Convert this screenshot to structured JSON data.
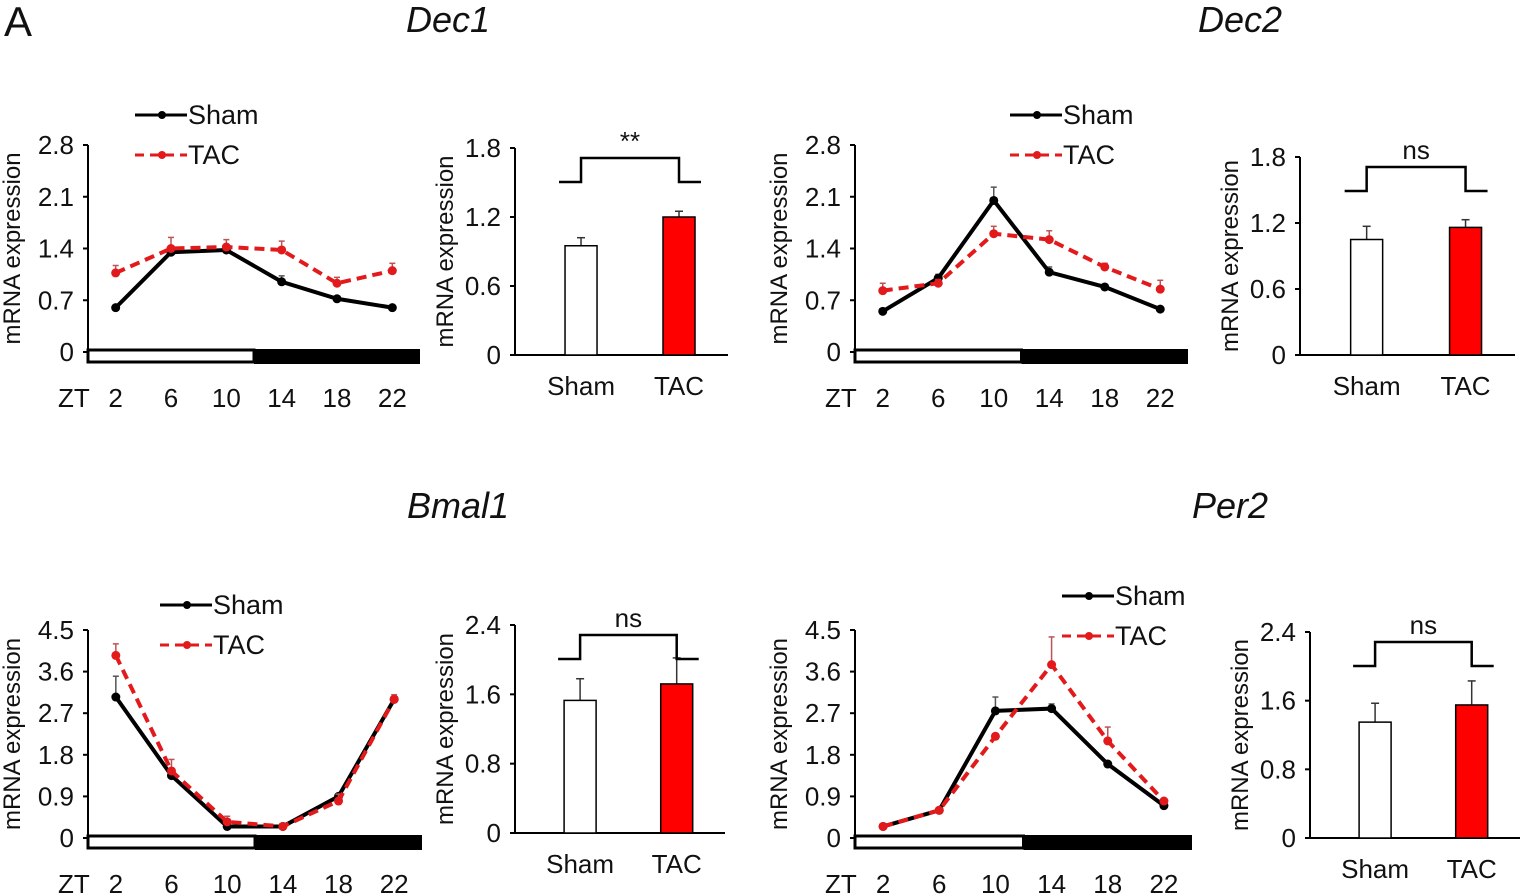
{
  "panel_label": "A",
  "colors": {
    "sham": "#000000",
    "tac": "#e31a1c",
    "tac_bar": "#ff0000"
  },
  "chart_data": [
    {
      "type": "line",
      "title": "Dec1",
      "ylabel": "mRNA expression",
      "xlabel_prefix": "ZT",
      "x": [
        2,
        6,
        10,
        14,
        18,
        22
      ],
      "xlim": [
        0,
        24
      ],
      "ylim": [
        0,
        2.8
      ],
      "yticks": [
        0,
        0.7,
        1.4,
        2.1,
        2.8
      ],
      "light_dark": {
        "light": [
          0,
          12
        ],
        "dark": [
          12,
          24
        ]
      },
      "legend": "top-left",
      "series": [
        {
          "name": "Sham",
          "values": [
            0.6,
            1.35,
            1.38,
            0.95,
            0.72,
            0.6
          ],
          "err": [
            0,
            0,
            0,
            0.08,
            0,
            0
          ]
        },
        {
          "name": "TAC",
          "values": [
            1.07,
            1.4,
            1.42,
            1.38,
            0.93,
            1.1
          ],
          "err": [
            0.1,
            0.15,
            0.1,
            0.12,
            0.08,
            0.1
          ]
        }
      ]
    },
    {
      "type": "bar",
      "title": "",
      "ylabel": "mRNA expression",
      "categories": [
        "Sham",
        "TAC"
      ],
      "values": [
        0.95,
        1.2
      ],
      "err": [
        0.07,
        0.05
      ],
      "ylim": [
        0,
        1.8
      ],
      "yticks": [
        0,
        0.6,
        1.2,
        1.8
      ],
      "significance": "**"
    },
    {
      "type": "line",
      "title": "Dec2",
      "ylabel": "mRNA expression",
      "xlabel_prefix": "ZT",
      "x": [
        2,
        6,
        10,
        14,
        18,
        22
      ],
      "xlim": [
        0,
        24
      ],
      "ylim": [
        0,
        2.8
      ],
      "yticks": [
        0,
        0.7,
        1.4,
        2.1,
        2.8
      ],
      "light_dark": {
        "light": [
          0,
          12
        ],
        "dark": [
          12,
          24
        ]
      },
      "legend": "top-right",
      "series": [
        {
          "name": "Sham",
          "values": [
            0.55,
            1.0,
            2.05,
            1.08,
            0.88,
            0.58
          ],
          "err": [
            0,
            0.05,
            0.18,
            0.07,
            0,
            0
          ]
        },
        {
          "name": "TAC",
          "values": [
            0.83,
            0.93,
            1.6,
            1.52,
            1.15,
            0.85
          ],
          "err": [
            0.1,
            0.05,
            0.1,
            0.12,
            0.05,
            0.12
          ]
        }
      ]
    },
    {
      "type": "bar",
      "title": "",
      "ylabel": "mRNA expression",
      "categories": [
        "Sham",
        "TAC"
      ],
      "values": [
        1.05,
        1.16
      ],
      "err": [
        0.12,
        0.07
      ],
      "ylim": [
        0,
        1.8
      ],
      "yticks": [
        0,
        0.6,
        1.2,
        1.8
      ],
      "significance": "ns"
    },
    {
      "type": "line",
      "title": "Bmal1",
      "ylabel": "mRNA expression",
      "xlabel_prefix": "ZT",
      "x": [
        2,
        6,
        10,
        14,
        18,
        22
      ],
      "xlim": [
        0,
        24
      ],
      "ylim": [
        0,
        4.5
      ],
      "yticks": [
        0,
        0.9,
        1.8,
        2.7,
        3.6,
        4.5
      ],
      "light_dark": {
        "light": [
          0,
          12
        ],
        "dark": [
          12,
          24
        ]
      },
      "legend": "top-center",
      "series": [
        {
          "name": "Sham",
          "values": [
            3.05,
            1.35,
            0.25,
            0.25,
            0.9,
            3.0
          ],
          "err": [
            0.45,
            0,
            0,
            0,
            0,
            0
          ]
        },
        {
          "name": "TAC",
          "values": [
            3.95,
            1.45,
            0.35,
            0.25,
            0.8,
            3.0
          ],
          "err": [
            0.25,
            0.25,
            0.12,
            0,
            0.15,
            0.1
          ]
        }
      ]
    },
    {
      "type": "bar",
      "title": "",
      "ylabel": "mRNA expression",
      "categories": [
        "Sham",
        "TAC"
      ],
      "values": [
        1.53,
        1.72
      ],
      "err": [
        0.25,
        0.3
      ],
      "ylim": [
        0,
        2.4
      ],
      "yticks": [
        0,
        0.8,
        1.6,
        2.4
      ],
      "significance": "ns"
    },
    {
      "type": "line",
      "title": "Per2",
      "ylabel": "mRNA expression",
      "xlabel_prefix": "ZT",
      "x": [
        2,
        6,
        10,
        14,
        18,
        22
      ],
      "xlim": [
        0,
        24
      ],
      "ylim": [
        0,
        4.5
      ],
      "yticks": [
        0,
        0.9,
        1.8,
        2.7,
        3.6,
        4.5
      ],
      "light_dark": {
        "light": [
          0,
          12
        ],
        "dark": [
          12,
          24
        ]
      },
      "legend": "top-right",
      "series": [
        {
          "name": "Sham",
          "values": [
            0.25,
            0.6,
            2.75,
            2.8,
            1.6,
            0.7
          ],
          "err": [
            0,
            0,
            0.3,
            0.1,
            0.05,
            0
          ]
        },
        {
          "name": "TAC",
          "values": [
            0.25,
            0.6,
            2.2,
            3.75,
            2.1,
            0.8
          ],
          "err": [
            0,
            0,
            0,
            0.6,
            0.3,
            0
          ]
        }
      ]
    },
    {
      "type": "bar",
      "title": "",
      "ylabel": "mRNA expression",
      "categories": [
        "Sham",
        "TAC"
      ],
      "values": [
        1.35,
        1.55
      ],
      "err": [
        0.22,
        0.28
      ],
      "ylim": [
        0,
        2.4
      ],
      "yticks": [
        0,
        0.8,
        1.6,
        2.4
      ],
      "significance": "ns"
    }
  ]
}
